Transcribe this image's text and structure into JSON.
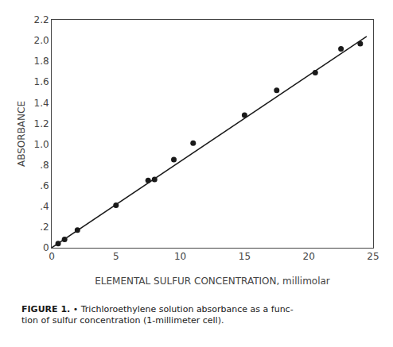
{
  "chart_data": {
    "type": "scatter",
    "xlabel": "ELEMENTAL SULFUR CONCENTRATION, millimolar",
    "ylabel": "ABSORBANCE",
    "annotations": [
      "FIGURE 1.",
      "•",
      "Trichloroethylene solution absorbance as a func-",
      "tion of sulfur concentration (1-millimeter cell)."
    ],
    "series": [
      {
        "type": "scatter",
        "color": "#1a1a1a",
        "x": [
          0.5,
          1.0,
          2.0,
          5.0,
          7.5,
          8.0,
          9.5,
          11.0,
          15.0,
          17.5,
          20.5,
          22.5,
          24.0
        ],
        "values": [
          0.04,
          0.08,
          0.17,
          0.41,
          0.65,
          0.66,
          0.85,
          1.01,
          1.28,
          1.52,
          1.69,
          1.92,
          1.97
        ]
      },
      {
        "type": "line",
        "color": "#1a1a1a",
        "x": [
          0.0,
          24.5
        ],
        "values": [
          0.0,
          2.04
        ]
      }
    ],
    "xlim": [
      0,
      25
    ],
    "ylim": [
      0,
      2.2
    ],
    "xticks": [
      0,
      5,
      10,
      15,
      20,
      25
    ],
    "yticks": [
      0,
      {
        "value": 0.2,
        "label": ".2"
      },
      {
        "value": 0.4,
        "label": ".4"
      },
      {
        "value": 0.6,
        "label": ".6"
      },
      {
        "value": 0.8,
        "label": ".8"
      },
      {
        "value": 1.0,
        "label": "1.0"
      },
      1.2,
      1.4,
      1.6,
      1.8,
      {
        "value": 2.0,
        "label": "2.0"
      },
      2.2
    ],
    "grid": false
  }
}
